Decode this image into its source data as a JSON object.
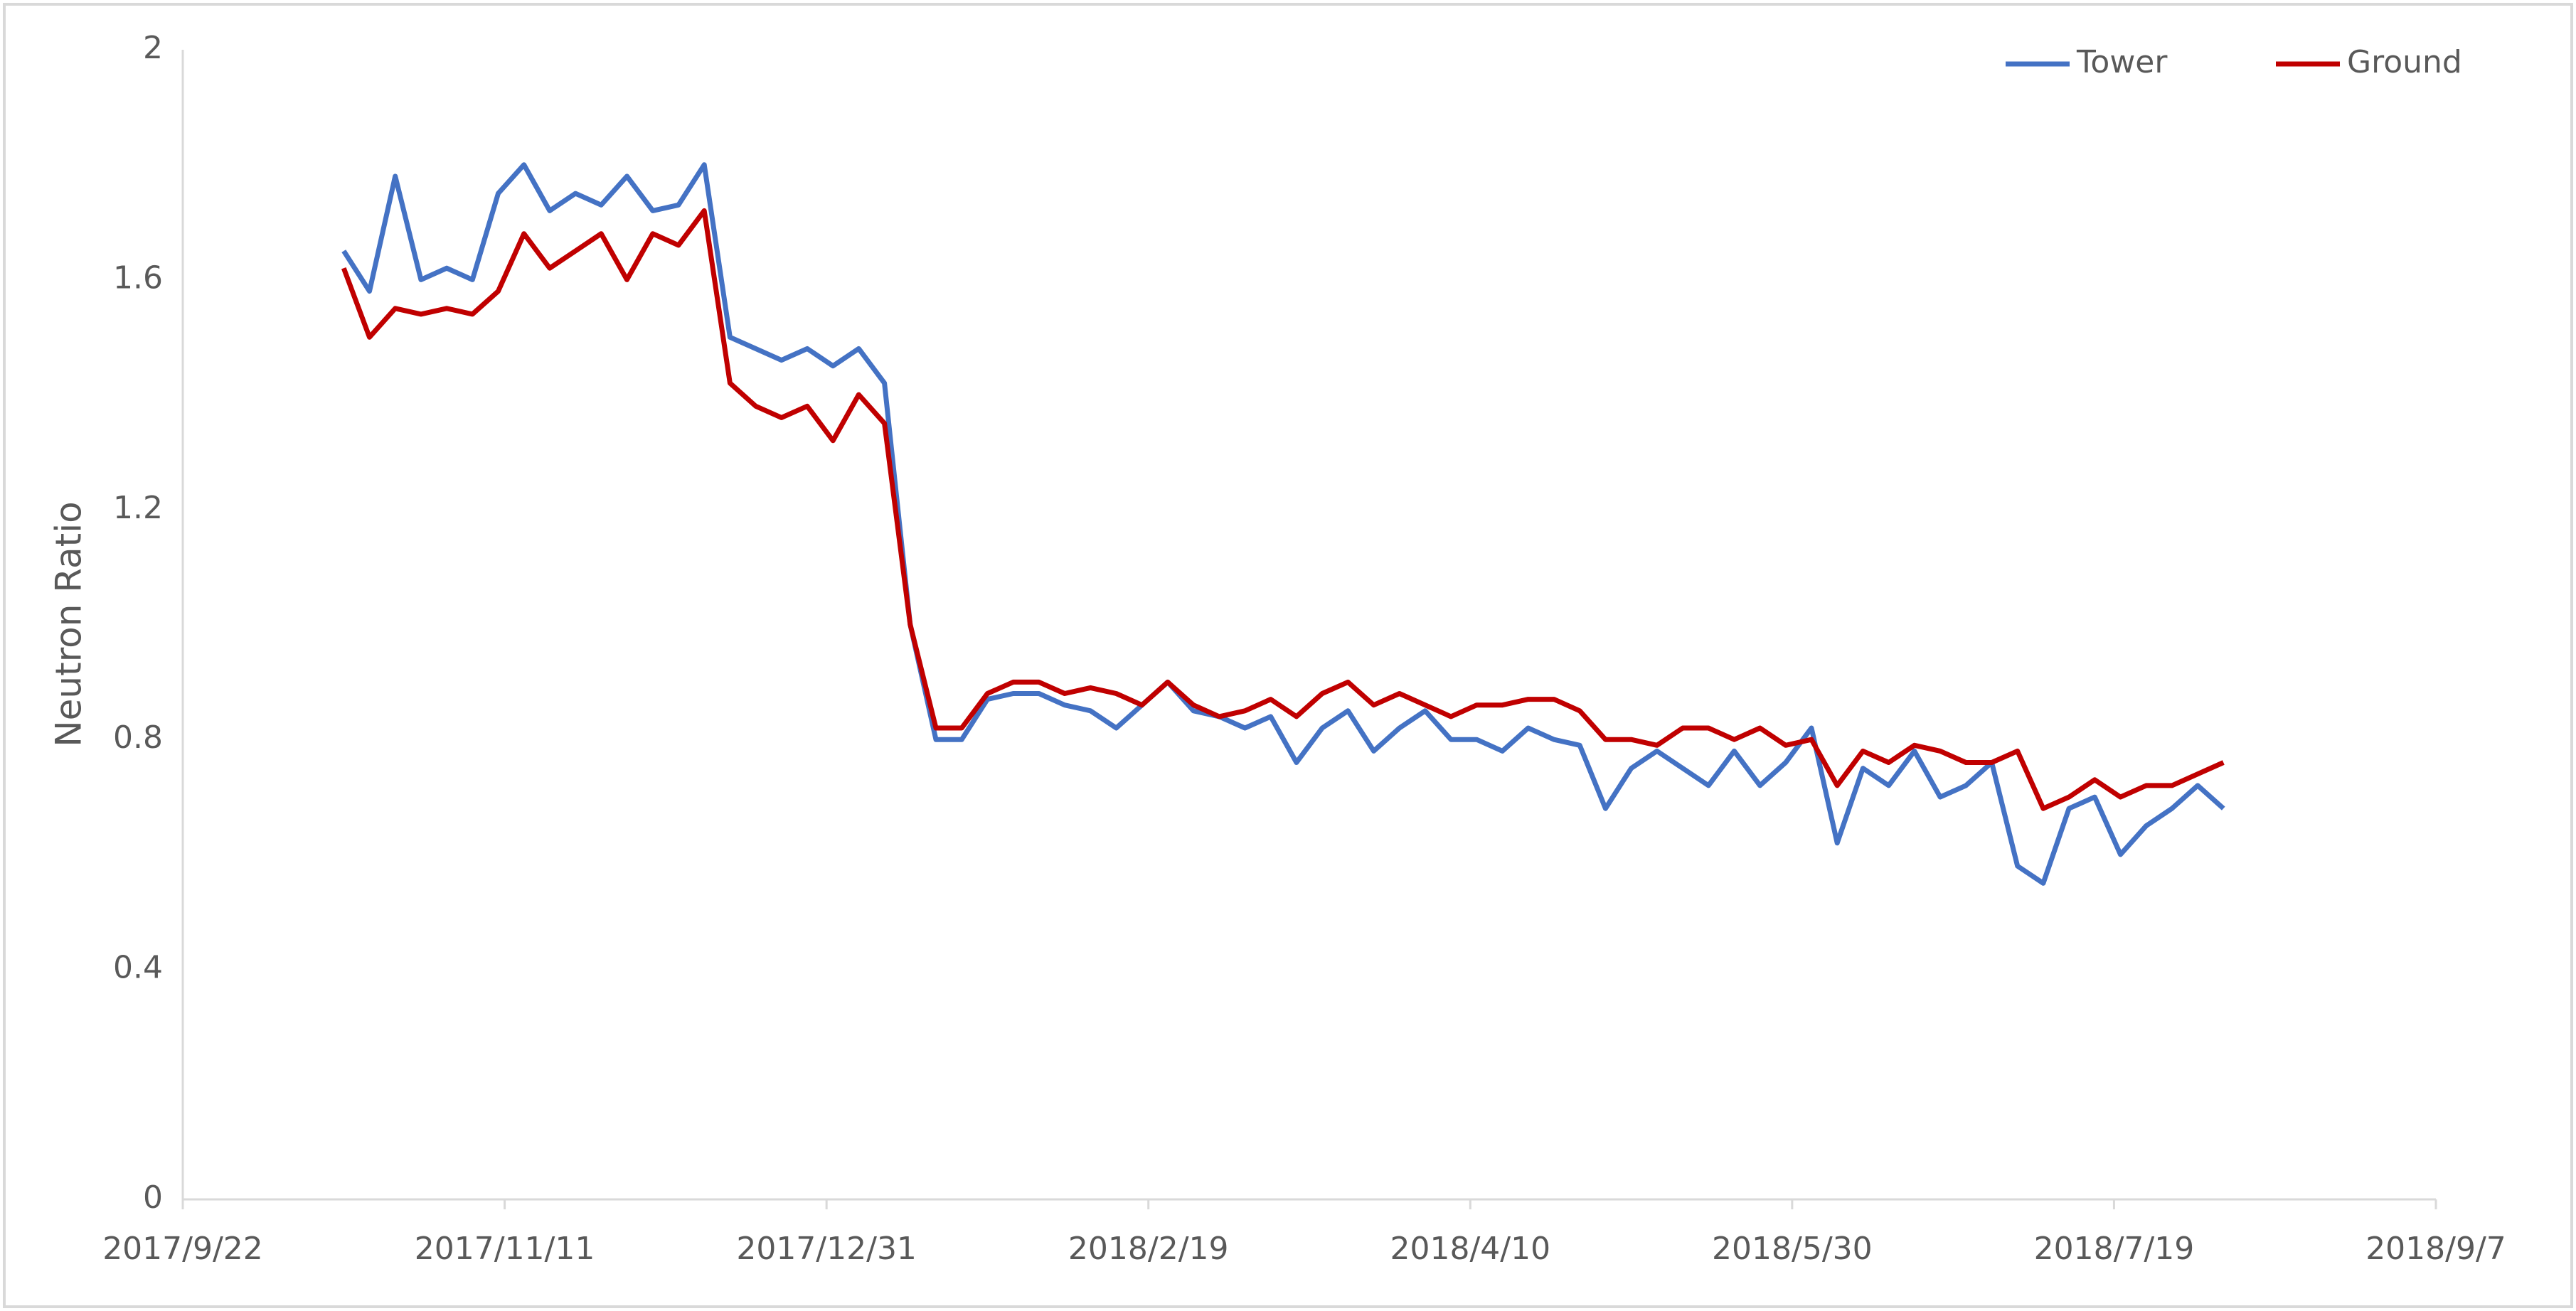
{
  "chart_data": {
    "type": "line",
    "y_label": "Neutron Ratio",
    "x": [
      "2017/10/17",
      "2017/10/21",
      "2017/10/25",
      "2017/10/29",
      "2017/11/2",
      "2017/11/6",
      "2017/11/10",
      "2017/11/14",
      "2017/11/18",
      "2017/11/22",
      "2017/11/26",
      "2017/11/30",
      "2017/12/4",
      "2017/12/8",
      "2017/12/12",
      "2017/12/16",
      "2017/12/20",
      "2017/12/24",
      "2017/12/28",
      "2018/1/1",
      "2018/1/5",
      "2018/1/9",
      "2018/1/13",
      "2018/1/17",
      "2018/1/21",
      "2018/1/25",
      "2018/1/29",
      "2018/2/2",
      "2018/2/6",
      "2018/2/10",
      "2018/2/14",
      "2018/2/18",
      "2018/2/22",
      "2018/2/26",
      "2018/3/2",
      "2018/3/6",
      "2018/3/10",
      "2018/3/14",
      "2018/3/18",
      "2018/3/22",
      "2018/3/26",
      "2018/3/30",
      "2018/4/3",
      "2018/4/7",
      "2018/4/11",
      "2018/4/15",
      "2018/4/19",
      "2018/4/23",
      "2018/4/27",
      "2018/5/1",
      "2018/5/5",
      "2018/5/9",
      "2018/5/13",
      "2018/5/17",
      "2018/5/21",
      "2018/5/25",
      "2018/5/29",
      "2018/6/2",
      "2018/6/6",
      "2018/6/10",
      "2018/6/14",
      "2018/6/18",
      "2018/6/22",
      "2018/6/26",
      "2018/6/30",
      "2018/7/4",
      "2018/7/8",
      "2018/7/12",
      "2018/7/16",
      "2018/7/20",
      "2018/7/24",
      "2018/7/28",
      "2018/8/1",
      "2018/8/5"
    ],
    "series": [
      {
        "name": "Tower",
        "color": "#4472c4",
        "values": [
          1.65,
          1.58,
          1.78,
          1.6,
          1.62,
          1.6,
          1.75,
          1.8,
          1.72,
          1.75,
          1.73,
          1.78,
          1.72,
          1.73,
          1.8,
          1.5,
          1.48,
          1.46,
          1.48,
          1.45,
          1.48,
          1.42,
          1.0,
          0.8,
          0.8,
          0.87,
          0.88,
          0.88,
          0.86,
          0.85,
          0.82,
          0.86,
          0.9,
          0.85,
          0.84,
          0.82,
          0.84,
          0.76,
          0.82,
          0.85,
          0.78,
          0.82,
          0.85,
          0.8,
          0.8,
          0.78,
          0.82,
          0.8,
          0.79,
          0.68,
          0.75,
          0.78,
          0.75,
          0.72,
          0.78,
          0.72,
          0.76,
          0.82,
          0.62,
          0.75,
          0.72,
          0.78,
          0.7,
          0.72,
          0.76,
          0.58,
          0.55,
          0.68,
          0.7,
          0.6,
          0.65,
          0.68,
          0.72,
          0.68
        ]
      },
      {
        "name": "Ground",
        "color": "#c00000",
        "values": [
          1.62,
          1.5,
          1.55,
          1.54,
          1.55,
          1.54,
          1.58,
          1.68,
          1.62,
          1.65,
          1.68,
          1.6,
          1.68,
          1.66,
          1.72,
          1.42,
          1.38,
          1.36,
          1.38,
          1.32,
          1.4,
          1.35,
          1.0,
          0.82,
          0.82,
          0.88,
          0.9,
          0.9,
          0.88,
          0.89,
          0.88,
          0.86,
          0.9,
          0.86,
          0.84,
          0.85,
          0.87,
          0.84,
          0.88,
          0.9,
          0.86,
          0.88,
          0.86,
          0.84,
          0.86,
          0.86,
          0.87,
          0.87,
          0.85,
          0.8,
          0.8,
          0.79,
          0.82,
          0.82,
          0.8,
          0.82,
          0.79,
          0.8,
          0.72,
          0.78,
          0.76,
          0.79,
          0.78,
          0.76,
          0.76,
          0.78,
          0.68,
          0.7,
          0.73,
          0.7,
          0.72,
          0.72,
          0.74,
          0.76
        ]
      }
    ],
    "xlim": [
      "2017/9/22",
      "2018/9/7"
    ],
    "xticks": [
      "2017/9/22",
      "2017/11/11",
      "2017/12/31",
      "2018/2/19",
      "2018/4/10",
      "2018/5/30",
      "2018/7/19",
      "2018/9/7"
    ],
    "ylim": [
      0,
      2
    ],
    "yticks": [
      0,
      0.4,
      0.8,
      1.2,
      1.6,
      2
    ],
    "grid": false,
    "legend": "top-right"
  }
}
